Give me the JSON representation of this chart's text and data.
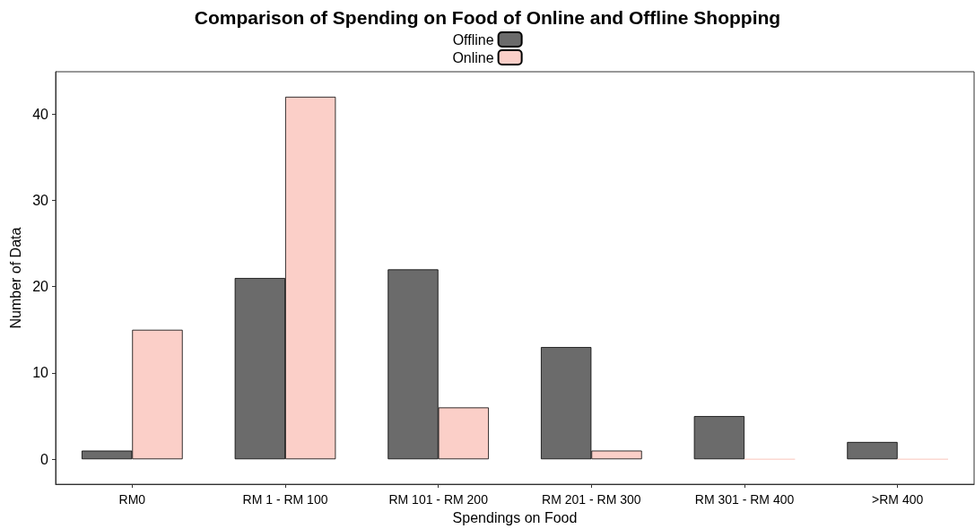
{
  "chart_data": {
    "type": "bar",
    "title": "Comparison of Spending on Food of Online and Offline Shopping",
    "xlabel": "Spendings on Food",
    "ylabel": "Number of Data",
    "categories": [
      "RM0",
      "RM 1 - RM 100",
      "RM 101 - RM 200",
      "RM 201 - RM 300",
      "RM 301 - RM 400",
      ">RM 400"
    ],
    "series": [
      {
        "name": "Offline",
        "color": "#6b6b6b",
        "values": [
          1,
          21,
          22,
          13,
          5,
          2
        ]
      },
      {
        "name": "Online",
        "color": "#fbcfc8",
        "values": [
          15,
          42,
          6,
          1,
          0,
          0
        ]
      }
    ],
    "ylim": [
      -2.9,
      44.9
    ],
    "yticks": [
      0,
      10,
      20,
      30,
      40
    ],
    "grid": false,
    "legend": "top"
  }
}
